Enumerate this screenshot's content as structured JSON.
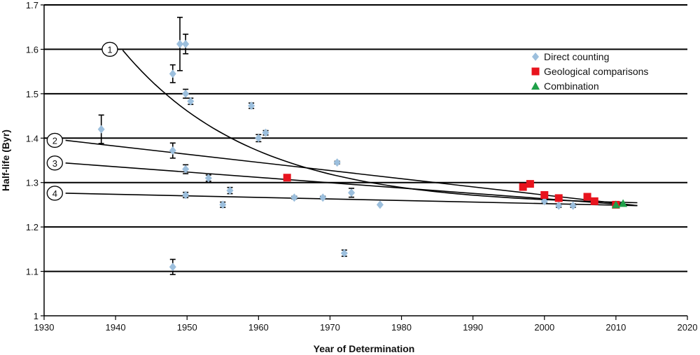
{
  "chart_data": {
    "type": "scatter",
    "title": "",
    "xlabel": "Year of Determination",
    "ylabel": "Half-life (Byr)",
    "xlim": [
      1930,
      2020
    ],
    "ylim": [
      1.0,
      1.7
    ],
    "x_ticks": [
      "1930",
      "1940",
      "1950",
      "1960",
      "1970",
      "1980",
      "1990",
      "2000",
      "2010",
      "2020"
    ],
    "y_ticks": [
      "1",
      "1.1",
      "1.2",
      "1.3",
      "1.4",
      "1.5",
      "1.6",
      "1.7"
    ],
    "grid": "horizontal",
    "legend_position": "top-right",
    "colors": {
      "direct": "#9cbfdd",
      "geological": "#e8141e",
      "combination": "#1fa049",
      "line": "#000000"
    },
    "series": [
      {
        "name": "Direct counting",
        "marker": "diamond",
        "points": [
          {
            "x": 1938,
            "y": 1.42,
            "err": 0.032
          },
          {
            "x": 1948,
            "y": 1.545,
            "err": 0.02
          },
          {
            "x": 1948,
            "y": 1.372,
            "err": 0.017
          },
          {
            "x": 1948,
            "y": 1.11,
            "err": 0.017
          },
          {
            "x": 1949,
            "y": 1.612,
            "err": 0.06
          },
          {
            "x": 1949.8,
            "y": 1.612,
            "err": 0.022
          },
          {
            "x": 1949.8,
            "y": 1.5,
            "err": 0.01
          },
          {
            "x": 1949.8,
            "y": 1.33,
            "err": 0.01
          },
          {
            "x": 1949.8,
            "y": 1.272,
            "err": 0.006
          },
          {
            "x": 1950.5,
            "y": 1.483,
            "err": 0.007
          },
          {
            "x": 1953,
            "y": 1.31,
            "err": 0.007
          },
          {
            "x": 1955,
            "y": 1.25,
            "err": 0.006
          },
          {
            "x": 1956,
            "y": 1.282,
            "err": 0.007
          },
          {
            "x": 1959,
            "y": 1.473,
            "err": 0.006
          },
          {
            "x": 1960,
            "y": 1.4,
            "err": 0.008
          },
          {
            "x": 1961,
            "y": 1.412,
            "err": 0.005
          },
          {
            "x": 1965,
            "y": 1.266,
            "err": 0.003
          },
          {
            "x": 1969,
            "y": 1.266,
            "err": 0.003
          },
          {
            "x": 1971,
            "y": 1.345,
            "err": 0.003
          },
          {
            "x": 1972,
            "y": 1.141,
            "err": 0.007
          },
          {
            "x": 1973,
            "y": 1.277,
            "err": 0.01
          },
          {
            "x": 1977,
            "y": 1.25,
            "err": 0
          },
          {
            "x": 2000,
            "y": 1.258,
            "err": 0.004
          },
          {
            "x": 2002,
            "y": 1.248,
            "err": 0.004
          },
          {
            "x": 2004,
            "y": 1.248,
            "err": 0.004
          }
        ]
      },
      {
        "name": "Geological comparisons",
        "marker": "square",
        "points": [
          {
            "x": 1964,
            "y": 1.311
          },
          {
            "x": 1997,
            "y": 1.29
          },
          {
            "x": 1998,
            "y": 1.297
          },
          {
            "x": 2000,
            "y": 1.272
          },
          {
            "x": 2002,
            "y": 1.265
          },
          {
            "x": 2006,
            "y": 1.268
          },
          {
            "x": 2007,
            "y": 1.258
          },
          {
            "x": 2010,
            "y": 1.25
          }
        ]
      },
      {
        "name": "Combination",
        "marker": "triangle",
        "points": [
          {
            "x": 2010,
            "y": 1.25
          },
          {
            "x": 2011,
            "y": 1.253
          }
        ]
      }
    ],
    "curves": [
      {
        "label": "1",
        "type": "exponential",
        "x": [
          1941,
          2013
        ],
        "y": [
          1.598,
          1.248
        ],
        "decay_per_year": 0.055
      },
      {
        "label": "2",
        "type": "linear",
        "x": [
          1933,
          2013
        ],
        "y": [
          1.395,
          1.248
        ]
      },
      {
        "label": "3",
        "type": "linear",
        "x": [
          1933,
          2013
        ],
        "y": [
          1.344,
          1.248
        ]
      },
      {
        "label": "4",
        "type": "linear",
        "x": [
          1933,
          2013
        ],
        "y": [
          1.276,
          1.248
        ]
      }
    ],
    "curve_label_positions": [
      {
        "label": "1",
        "x": 1939.2,
        "y": 1.6
      },
      {
        "label": "2",
        "x": 1931.5,
        "y": 1.395
      },
      {
        "label": "3",
        "x": 1931.5,
        "y": 1.344
      },
      {
        "label": "4",
        "x": 1931.5,
        "y": 1.276
      }
    ]
  }
}
